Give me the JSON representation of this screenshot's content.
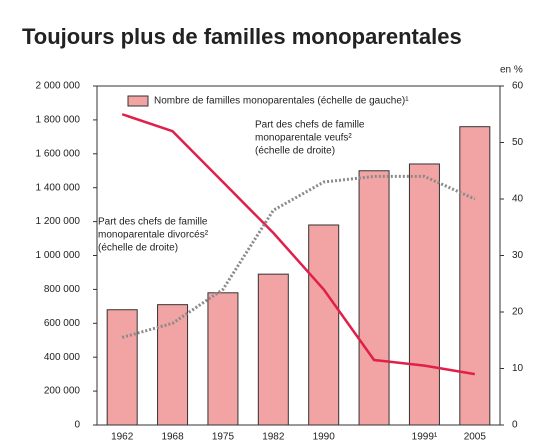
{
  "chart_data": {
    "type": "bar_line",
    "title": "Toujours plus de familles monoparentales",
    "y2_unit": "en %",
    "categories": [
      "1962",
      "1968",
      "1975",
      "1982",
      "1990",
      null,
      "1999¹",
      "2005"
    ],
    "ylim": [
      0,
      2000000
    ],
    "yticks": [
      0,
      {
        "value": 200000,
        "label": "200 000"
      },
      {
        "value": 400000,
        "label": "400 000"
      },
      {
        "value": 600000,
        "label": "600 000"
      },
      {
        "value": 800000,
        "label": "800 000"
      },
      {
        "value": 1000000,
        "label": "1 000 000"
      },
      {
        "value": 1200000,
        "label": "1 200 000"
      },
      {
        "value": 1400000,
        "label": "1 400 000"
      },
      {
        "value": 1600000,
        "label": "1 600 000"
      },
      {
        "value": 1800000,
        "label": "1 800 000"
      },
      {
        "value": 2000000,
        "label": "2 000 000"
      }
    ],
    "y2lim": [
      0,
      60
    ],
    "y2ticks": [
      0,
      10,
      20,
      30,
      40,
      50,
      60
    ],
    "series": [
      {
        "name": "Nombre de familles monoparentales (échelle de gauche)¹",
        "type": "bar",
        "color": "#f2a3a3",
        "values": [
          680000,
          710000,
          780000,
          890000,
          1180000,
          1500000,
          1540000,
          1760000
        ]
      },
      {
        "type": "line",
        "axis": "y2",
        "color": "#e0204a",
        "dash": false,
        "annotation": [
          "Part des chefs de famille",
          "monoparentale veufs²",
          "(échelle de droite)"
        ],
        "values": [
          55,
          52,
          43,
          34,
          24,
          11.5,
          10.5,
          9
        ]
      },
      {
        "type": "line",
        "axis": "y2",
        "color": "#8a8a8a",
        "dash": true,
        "annotation": [
          "Part des chefs de famille",
          "monoparentale divorcés²",
          "(échelle de droite)"
        ],
        "values": [
          15.5,
          18,
          24,
          38,
          43,
          44,
          44,
          40
        ]
      }
    ]
  }
}
